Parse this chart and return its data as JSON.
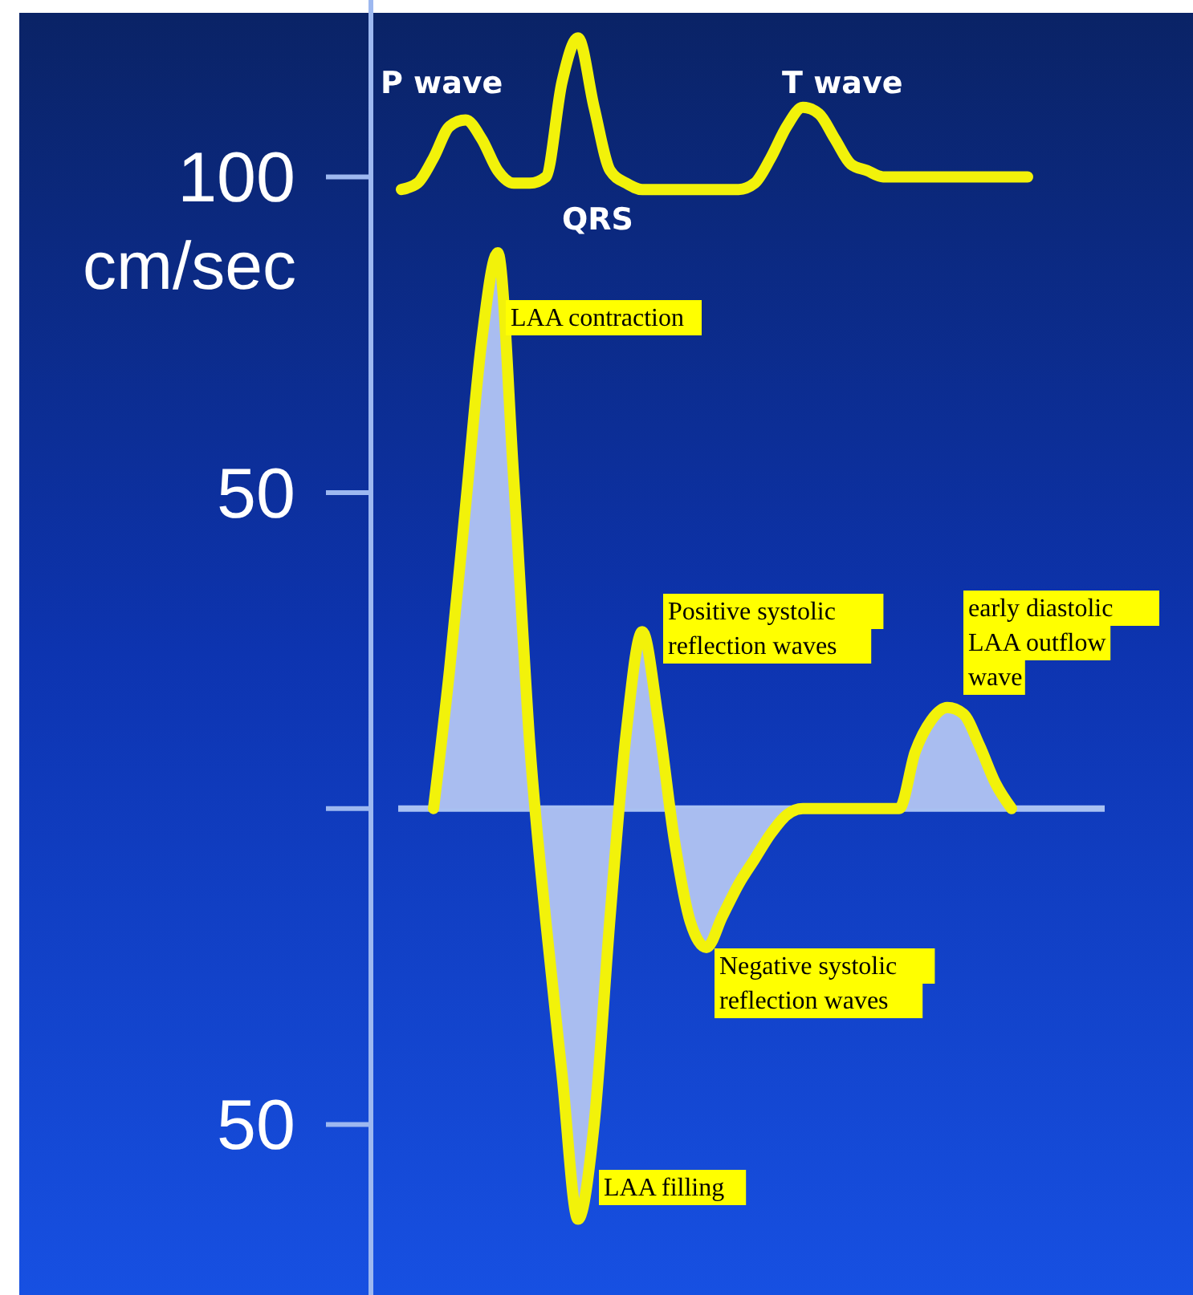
{
  "chart_data": {
    "type": "area",
    "ylabel": "cm/sec",
    "ylim": [
      -77,
      128
    ],
    "yticks": [
      100,
      50,
      {
        "value": 0,
        "label": null
      },
      {
        "value": -50,
        "label": "50"
      }
    ],
    "tick_labels": "y",
    "grid": false,
    "line_style": "solid",
    "categories": [
      null,
      null,
      null,
      null,
      null,
      null,
      null,
      null,
      null,
      null,
      null,
      null,
      null,
      null,
      null,
      null,
      null,
      null,
      null,
      null,
      null,
      null,
      null,
      null,
      null,
      null,
      null,
      null,
      null,
      null,
      null,
      null,
      null,
      null,
      null,
      null,
      null,
      null,
      null,
      null,
      null,
      null,
      null,
      null,
      null,
      null
    ],
    "series": [
      {
        "color": "#a9bdf0",
        "values": [
          null,
          null,
          null,
          0,
          22,
          48,
          74,
          88,
          52,
          10,
          -18,
          -42,
          -65,
          -50,
          -17,
          12,
          28,
          14,
          -5,
          -18,
          -22,
          -17,
          -12,
          -8,
          -4,
          -1,
          0,
          0,
          0,
          0,
          0,
          0,
          0,
          9,
          14,
          16,
          15,
          10,
          4,
          0,
          null,
          null,
          null,
          null,
          null,
          null
        ]
      },
      {
        "type": "line",
        "color": "#f2f20a",
        "values": [
          null,
          98,
          99,
          103,
          108,
          109,
          106,
          101,
          99,
          99,
          100,
          115,
          122,
          111,
          101,
          99,
          98,
          98,
          98,
          98,
          98,
          98,
          98,
          99,
          103,
          108,
          111,
          110,
          106,
          102,
          101,
          100,
          100,
          100,
          100,
          100,
          100,
          100,
          100,
          100,
          100,
          null,
          null,
          null,
          null,
          null
        ]
      }
    ],
    "ref_lines": [
      {
        "axis": "y",
        "value": 0,
        "color": "#a9c1f2"
      }
    ],
    "annotations": [
      "P wave",
      "QRS",
      "T wave",
      "LAA contraction",
      "Positive systolic reflection waves",
      "Negative systolic reflection waves",
      "LAA filling",
      "early diastolic LAA outflow wave"
    ]
  }
}
